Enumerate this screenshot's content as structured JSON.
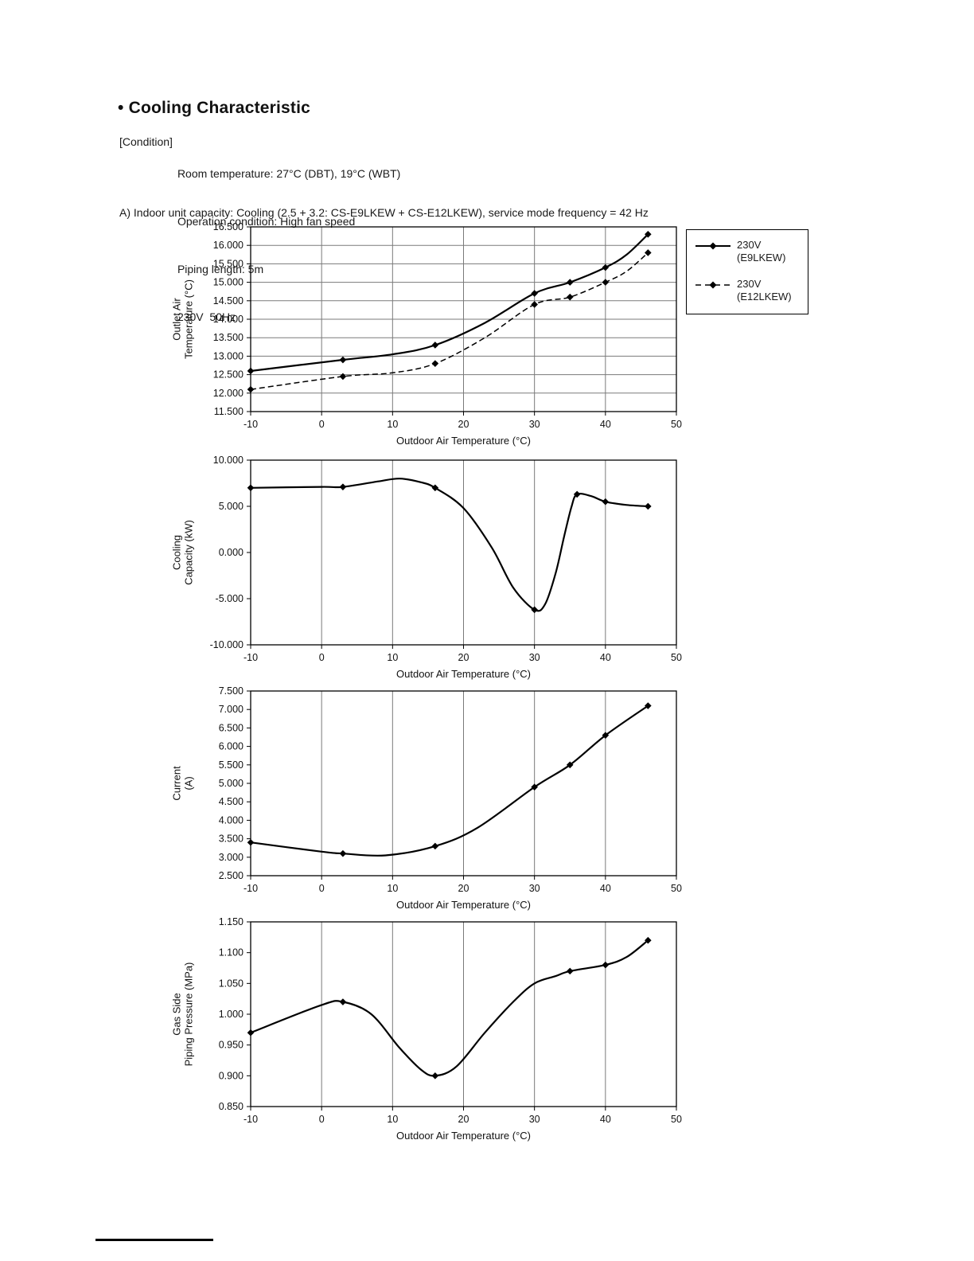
{
  "page": {
    "title": "• Cooling Characteristic",
    "condition_label": "[Condition]",
    "condition_lines": [
      "Room temperature: 27°C (DBT), 19°C (WBT)",
      "Operation condition: High fan speed",
      "Piping length: 5m",
      "230V  50Hz"
    ],
    "section_heading": "A) Indoor unit capacity: Cooling (2.5 + 3.2: CS-E9LKEW + CS-E12LKEW), service mode frequency = 42 Hz"
  },
  "legend": {
    "items": [
      {
        "label_line1": "230V",
        "label_line2": "(E9LKEW)",
        "style": "solid"
      },
      {
        "label_line1": "230V",
        "label_line2": "(E12LKEW)",
        "style": "dashed"
      }
    ]
  },
  "chart_data": [
    {
      "type": "line",
      "name": "outlet-air-temperature",
      "xlabel": "Outdoor Air Temperature (°C)",
      "ylabel_lines": [
        "Outlet Air",
        "Temperature (°C)"
      ],
      "xlim": [
        -10,
        50
      ],
      "xtick_step": 10,
      "ylim": [
        11.5,
        16.5
      ],
      "ytick_step": 0.5,
      "ytick_decimals": 3,
      "grid": "both",
      "series": [
        {
          "name": "230V (E9LKEW)",
          "style": "solid",
          "markers": [
            [
              -10,
              12.6
            ],
            [
              3,
              12.9
            ],
            [
              16,
              13.3
            ],
            [
              30,
              14.7
            ],
            [
              35,
              15.0
            ],
            [
              40,
              15.4
            ],
            [
              46,
              16.3
            ]
          ],
          "curve": [
            [
              -10,
              12.6
            ],
            [
              3,
              12.9
            ],
            [
              10,
              13.05
            ],
            [
              16,
              13.3
            ],
            [
              23,
              13.9
            ],
            [
              30,
              14.7
            ],
            [
              35,
              15.0
            ],
            [
              40,
              15.4
            ],
            [
              43,
              15.75
            ],
            [
              46,
              16.3
            ]
          ]
        },
        {
          "name": "230V (E12LKEW)",
          "style": "dashed",
          "markers": [
            [
              -10,
              12.1
            ],
            [
              3,
              12.45
            ],
            [
              16,
              12.8
            ],
            [
              30,
              14.4
            ],
            [
              35,
              14.6
            ],
            [
              40,
              15.0
            ],
            [
              46,
              15.8
            ]
          ],
          "curve": [
            [
              -10,
              12.1
            ],
            [
              3,
              12.45
            ],
            [
              10,
              12.55
            ],
            [
              16,
              12.8
            ],
            [
              23,
              13.5
            ],
            [
              30,
              14.4
            ],
            [
              35,
              14.6
            ],
            [
              40,
              15.0
            ],
            [
              43,
              15.3
            ],
            [
              46,
              15.8
            ]
          ]
        }
      ]
    },
    {
      "type": "line",
      "name": "cooling-capacity",
      "xlabel": "Outdoor Air Temperature (°C)",
      "ylabel_lines": [
        "Cooling",
        "Capacity (kW)"
      ],
      "xlim": [
        -10,
        50
      ],
      "xtick_step": 10,
      "ylim": [
        -10,
        10
      ],
      "ytick_step": 5,
      "ytick_decimals": 3,
      "grid": "vertical",
      "series": [
        {
          "name": "230V",
          "style": "solid",
          "markers": [
            [
              -10,
              7.0
            ],
            [
              3,
              7.1
            ],
            [
              16,
              7.0
            ],
            [
              30,
              -6.2
            ],
            [
              36,
              6.3
            ],
            [
              40,
              5.5
            ],
            [
              46,
              5.0
            ]
          ],
          "curve": [
            [
              -10,
              7.0
            ],
            [
              0,
              7.1
            ],
            [
              3,
              7.1
            ],
            [
              8,
              7.7
            ],
            [
              11,
              8.0
            ],
            [
              14,
              7.6
            ],
            [
              16,
              7.0
            ],
            [
              20,
              4.8
            ],
            [
              24,
              0.5
            ],
            [
              27,
              -3.8
            ],
            [
              30,
              -6.2
            ],
            [
              31.5,
              -5.6
            ],
            [
              33,
              -2.2
            ],
            [
              34.2,
              1.8
            ],
            [
              35.2,
              4.9
            ],
            [
              36,
              6.3
            ],
            [
              38,
              6.1
            ],
            [
              40,
              5.5
            ],
            [
              43,
              5.15
            ],
            [
              46,
              5.0
            ]
          ]
        }
      ]
    },
    {
      "type": "line",
      "name": "current",
      "xlabel": "Outdoor Air Temperature (°C)",
      "ylabel_lines": [
        "Current",
        "(A)"
      ],
      "xlim": [
        -10,
        50
      ],
      "xtick_step": 10,
      "ylim": [
        2.5,
        7.5
      ],
      "ytick_step": 0.5,
      "ytick_decimals": 3,
      "grid": "vertical",
      "series": [
        {
          "name": "230V",
          "style": "solid",
          "markers": [
            [
              -10,
              3.4
            ],
            [
              3,
              3.1
            ],
            [
              16,
              3.3
            ],
            [
              30,
              4.9
            ],
            [
              35,
              5.5
            ],
            [
              40,
              6.3
            ],
            [
              46,
              7.1
            ]
          ],
          "curve": [
            [
              -10,
              3.4
            ],
            [
              0,
              3.15
            ],
            [
              3,
              3.1
            ],
            [
              9,
              3.05
            ],
            [
              16,
              3.3
            ],
            [
              22,
              3.8
            ],
            [
              30,
              4.9
            ],
            [
              35,
              5.5
            ],
            [
              40,
              6.3
            ],
            [
              46,
              7.1
            ]
          ]
        }
      ]
    },
    {
      "type": "line",
      "name": "gas-side-piping-pressure",
      "xlabel": "Outdoor Air Temperature (°C)",
      "ylabel_lines": [
        "Gas Side",
        "Piping Pressure (MPa)"
      ],
      "xlim": [
        -10,
        50
      ],
      "xtick_step": 10,
      "ylim": [
        0.85,
        1.15
      ],
      "ytick_step": 0.05,
      "ytick_decimals": 3,
      "grid": "vertical",
      "series": [
        {
          "name": "230V",
          "style": "solid",
          "markers": [
            [
              -10,
              0.97
            ],
            [
              3,
              1.02
            ],
            [
              16,
              0.9
            ],
            [
              35,
              1.07
            ],
            [
              40,
              1.08
            ],
            [
              46,
              1.12
            ]
          ],
          "curve": [
            [
              -10,
              0.97
            ],
            [
              0,
              1.015
            ],
            [
              3,
              1.02
            ],
            [
              7,
              1.0
            ],
            [
              11,
              0.945
            ],
            [
              14,
              0.91
            ],
            [
              16,
              0.9
            ],
            [
              19,
              0.915
            ],
            [
              23,
              0.97
            ],
            [
              27,
              1.02
            ],
            [
              30,
              1.05
            ],
            [
              33,
              1.062
            ],
            [
              35,
              1.07
            ],
            [
              40,
              1.08
            ],
            [
              43,
              1.093
            ],
            [
              46,
              1.12
            ]
          ]
        }
      ]
    }
  ]
}
